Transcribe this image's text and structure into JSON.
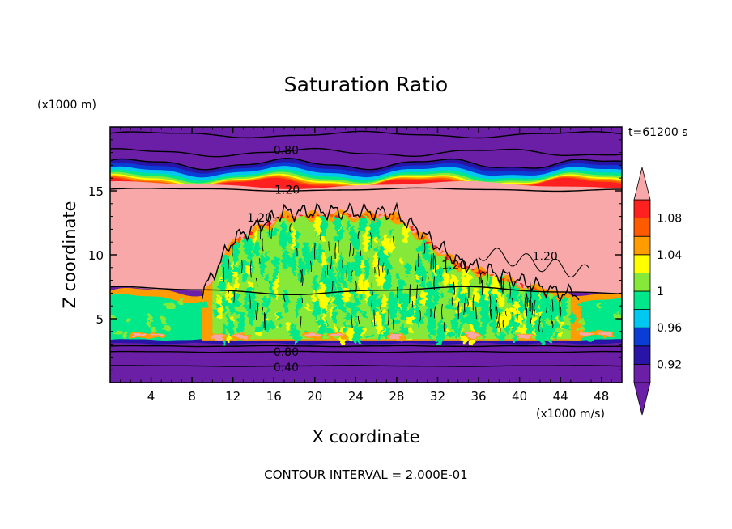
{
  "chart_data": {
    "type": "heatmap",
    "title": "Saturation Ratio",
    "xlabel": "X coordinate",
    "ylabel": "Z coordinate",
    "x_unit": "(x1000 m/s)",
    "y_unit": "(x1000 m)",
    "time_label": "t=61200 s",
    "footer": "CONTOUR INTERVAL = 2.000E-01",
    "xlim": [
      0,
      50
    ],
    "ylim": [
      0,
      20
    ],
    "x_ticks": [
      4,
      8,
      12,
      16,
      20,
      24,
      28,
      32,
      36,
      40,
      44,
      48
    ],
    "x_tick_labels": [
      "4",
      "8",
      "12",
      "16",
      "20",
      "24",
      "28",
      "32",
      "36",
      "40",
      "44",
      "48"
    ],
    "y_ticks": [
      5,
      10,
      15
    ],
    "y_tick_labels": [
      "5",
      "10",
      "15"
    ],
    "colorbar": {
      "levels": [
        0.9,
        0.92,
        0.94,
        0.96,
        0.98,
        1.0,
        1.02,
        1.04,
        1.06,
        1.08,
        1.1
      ],
      "colors": [
        "#6b1fa6",
        "#2a14a8",
        "#0a3cd6",
        "#00c8f0",
        "#00e88a",
        "#86e838",
        "#ffff00",
        "#ff9c00",
        "#ff5a00",
        "#ff2020",
        "#f8a8a8"
      ],
      "labels": [
        "0.92",
        "0.96",
        "1",
        "1.04",
        "1.08"
      ],
      "label_values": [
        0.92,
        0.96,
        1.0,
        1.04,
        1.08
      ]
    },
    "contour_labels": [
      {
        "text": "0.80",
        "x": 17.2,
        "z": 18.2
      },
      {
        "text": "1.20",
        "x": 17.3,
        "z": 15.1
      },
      {
        "text": "1.20",
        "x": 14.6,
        "z": 12.9
      },
      {
        "text": "1.20",
        "x": 33.6,
        "z": 9.2
      },
      {
        "text": "1.20",
        "x": 42.5,
        "z": 9.9
      },
      {
        "text": "0.80",
        "x": 17.2,
        "z": 2.4
      },
      {
        "text": "0.40",
        "x": 17.2,
        "z": 1.2
      }
    ],
    "zones": [
      {
        "name": "upper-dry-layer",
        "z": [
          16.2,
          20
        ],
        "value": 0.85
      },
      {
        "name": "tropopause-gradient",
        "z": [
          15.4,
          17
        ],
        "value_range": [
          0.9,
          1.1
        ]
      },
      {
        "name": "supersaturated-layer",
        "z": [
          7.5,
          15.4
        ],
        "value": 1.2
      },
      {
        "name": "cloud-region",
        "x": [
          10,
          44
        ],
        "z": [
          3,
          13
        ],
        "value_range": [
          0.98,
          1.08
        ]
      },
      {
        "name": "lower-cloud-deck",
        "z": [
          3,
          6.5
        ],
        "value": 0.98
      },
      {
        "name": "lower-dry-layer",
        "z": [
          0,
          2.9
        ],
        "value": 0.6
      }
    ]
  }
}
